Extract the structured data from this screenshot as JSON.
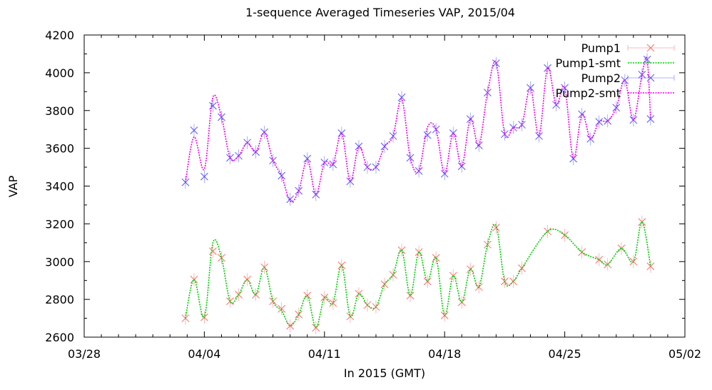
{
  "chart_data": {
    "type": "line",
    "title": "1-sequence Averaged Timeseries VAP, 2015/04",
    "xlabel": "In 2015 (GMT)",
    "ylabel": "VAP",
    "xlim": [
      "03/28",
      "05/02"
    ],
    "ylim": [
      2600,
      4200
    ],
    "xticks": [
      "03/28",
      "04/04",
      "04/11",
      "04/18",
      "04/25",
      "05/02"
    ],
    "yticks": [
      2600,
      2800,
      3000,
      3200,
      3400,
      3600,
      3800,
      4000,
      4200
    ],
    "grid": false,
    "legend_position": "top-right",
    "series": [
      {
        "name": "Pump1",
        "style": "points-errorbars",
        "marker": "x",
        "color": "#ff6b6b",
        "points": [
          [
            "04/02.9",
            2700
          ],
          [
            "04/03.4",
            2905
          ],
          [
            "04/04.0",
            2705
          ],
          [
            "04/04.5",
            3055
          ],
          [
            "04/05.0",
            3020
          ],
          [
            "04/05.5",
            2790
          ],
          [
            "04/06.0",
            2825
          ],
          [
            "04/06.5",
            2905
          ],
          [
            "04/07.0",
            2825
          ],
          [
            "04/07.5",
            2970
          ],
          [
            "04/08.0",
            2790
          ],
          [
            "04/08.5",
            2750
          ],
          [
            "04/09.0",
            2660
          ],
          [
            "04/09.5",
            2720
          ],
          [
            "04/10.0",
            2820
          ],
          [
            "04/10.5",
            2650
          ],
          [
            "04/11.0",
            2810
          ],
          [
            "04/11.5",
            2780
          ],
          [
            "04/12.0",
            2980
          ],
          [
            "04/12.5",
            2710
          ],
          [
            "04/13.0",
            2830
          ],
          [
            "04/13.5",
            2770
          ],
          [
            "04/14.0",
            2760
          ],
          [
            "04/14.5",
            2880
          ],
          [
            "04/15.0",
            2930
          ],
          [
            "04/15.5",
            3060
          ],
          [
            "04/16.0",
            2820
          ],
          [
            "04/16.5",
            3050
          ],
          [
            "04/17.0",
            2895
          ],
          [
            "04/17.5",
            3020
          ],
          [
            "04/18.0",
            2715
          ],
          [
            "04/18.5",
            2925
          ],
          [
            "04/19.0",
            2785
          ],
          [
            "04/19.5",
            2960
          ],
          [
            "04/20.0",
            2865
          ],
          [
            "04/20.5",
            3090
          ],
          [
            "04/21.0",
            3180
          ],
          [
            "04/21.5",
            2895
          ],
          [
            "04/22.0",
            2895
          ],
          [
            "04/22.5",
            2965
          ],
          [
            "04/24.0",
            3160
          ],
          [
            "04/25.0",
            3140
          ],
          [
            "04/26.0",
            3050
          ],
          [
            "04/27.0",
            3010
          ],
          [
            "04/27.5",
            2985
          ],
          [
            "04/28.3",
            3070
          ],
          [
            "04/29.0",
            3000
          ],
          [
            "04/29.5",
            3210
          ],
          [
            "04/30.0",
            2975
          ]
        ]
      },
      {
        "name": "Pump1-smt",
        "style": "smooth-line",
        "color": "#00cc00",
        "points": [
          [
            "04/02.9",
            2700
          ],
          [
            "04/03.4",
            2905
          ],
          [
            "04/04.0",
            2705
          ],
          [
            "04/04.5",
            3100
          ],
          [
            "04/05.0",
            3020
          ],
          [
            "04/05.5",
            2790
          ],
          [
            "04/06.0",
            2825
          ],
          [
            "04/06.5",
            2905
          ],
          [
            "04/07.0",
            2825
          ],
          [
            "04/07.5",
            2970
          ],
          [
            "04/08.0",
            2790
          ],
          [
            "04/08.5",
            2740
          ],
          [
            "04/09.0",
            2660
          ],
          [
            "04/09.5",
            2720
          ],
          [
            "04/10.0",
            2820
          ],
          [
            "04/10.5",
            2650
          ],
          [
            "04/11.0",
            2810
          ],
          [
            "04/11.5",
            2780
          ],
          [
            "04/12.0",
            2980
          ],
          [
            "04/12.5",
            2710
          ],
          [
            "04/13.0",
            2830
          ],
          [
            "04/13.5",
            2770
          ],
          [
            "04/14.0",
            2760
          ],
          [
            "04/14.5",
            2880
          ],
          [
            "04/15.0",
            2930
          ],
          [
            "04/15.5",
            3060
          ],
          [
            "04/16.0",
            2820
          ],
          [
            "04/16.5",
            3050
          ],
          [
            "04/17.0",
            2895
          ],
          [
            "04/17.5",
            3020
          ],
          [
            "04/18.0",
            2715
          ],
          [
            "04/18.5",
            2925
          ],
          [
            "04/19.0",
            2785
          ],
          [
            "04/19.5",
            2960
          ],
          [
            "04/20.0",
            2865
          ],
          [
            "04/20.5",
            3090
          ],
          [
            "04/21.0",
            3190
          ],
          [
            "04/21.5",
            2895
          ],
          [
            "04/22.0",
            2895
          ],
          [
            "04/22.5",
            2965
          ],
          [
            "04/24.0",
            3160
          ],
          [
            "04/25.0",
            3140
          ],
          [
            "04/26.0",
            3050
          ],
          [
            "04/27.0",
            3010
          ],
          [
            "04/27.5",
            2985
          ],
          [
            "04/28.3",
            3070
          ],
          [
            "04/29.0",
            3000
          ],
          [
            "04/29.5",
            3210
          ],
          [
            "04/30.0",
            2975
          ]
        ]
      },
      {
        "name": "Pump2",
        "style": "points-errorbars",
        "marker": "x",
        "color": "#5555ff",
        "points": [
          [
            "04/02.9",
            3420
          ],
          [
            "04/03.4",
            3695
          ],
          [
            "04/04.0",
            3450
          ],
          [
            "04/04.5",
            3825
          ],
          [
            "04/05.0",
            3765
          ],
          [
            "04/05.5",
            3550
          ],
          [
            "04/06.0",
            3560
          ],
          [
            "04/06.5",
            3630
          ],
          [
            "04/07.0",
            3580
          ],
          [
            "04/07.5",
            3685
          ],
          [
            "04/08.0",
            3535
          ],
          [
            "04/08.5",
            3455
          ],
          [
            "04/09.0",
            3330
          ],
          [
            "04/09.5",
            3375
          ],
          [
            "04/10.0",
            3545
          ],
          [
            "04/10.5",
            3355
          ],
          [
            "04/11.0",
            3525
          ],
          [
            "04/11.5",
            3515
          ],
          [
            "04/12.0",
            3680
          ],
          [
            "04/12.5",
            3425
          ],
          [
            "04/13.0",
            3610
          ],
          [
            "04/13.5",
            3500
          ],
          [
            "04/14.0",
            3500
          ],
          [
            "04/14.5",
            3610
          ],
          [
            "04/15.0",
            3665
          ],
          [
            "04/15.5",
            3870
          ],
          [
            "04/16.0",
            3550
          ],
          [
            "04/16.5",
            3480
          ],
          [
            "04/17.0",
            3670
          ],
          [
            "04/17.5",
            3700
          ],
          [
            "04/18.0",
            3465
          ],
          [
            "04/18.5",
            3680
          ],
          [
            "04/19.0",
            3505
          ],
          [
            "04/19.5",
            3755
          ],
          [
            "04/20.0",
            3615
          ],
          [
            "04/20.5",
            3895
          ],
          [
            "04/21.0",
            4050
          ],
          [
            "04/21.5",
            3675
          ],
          [
            "04/22.0",
            3710
          ],
          [
            "04/22.5",
            3725
          ],
          [
            "04/23.0",
            3920
          ],
          [
            "04/23.5",
            3665
          ],
          [
            "04/24.0",
            4025
          ],
          [
            "04/24.5",
            3830
          ],
          [
            "04/25.0",
            3920
          ],
          [
            "04/25.5",
            3545
          ],
          [
            "04/26.0",
            3780
          ],
          [
            "04/26.5",
            3650
          ],
          [
            "04/27.0",
            3740
          ],
          [
            "04/27.5",
            3745
          ],
          [
            "04/28.0",
            3815
          ],
          [
            "04/28.5",
            3960
          ],
          [
            "04/29.0",
            3750
          ],
          [
            "04/29.5",
            3990
          ],
          [
            "04/29.8",
            4070
          ],
          [
            "04/30.0",
            3755
          ]
        ]
      },
      {
        "name": "Pump2-smt",
        "style": "smooth-line",
        "color": "#ee00ee",
        "points": [
          [
            "04/02.9",
            3420
          ],
          [
            "04/03.4",
            3660
          ],
          [
            "04/04.0",
            3490
          ],
          [
            "04/04.5",
            3870
          ],
          [
            "04/05.0",
            3765
          ],
          [
            "04/05.5",
            3550
          ],
          [
            "04/06.0",
            3560
          ],
          [
            "04/06.5",
            3630
          ],
          [
            "04/07.0",
            3580
          ],
          [
            "04/07.5",
            3685
          ],
          [
            "04/08.0",
            3535
          ],
          [
            "04/08.5",
            3455
          ],
          [
            "04/09.0",
            3320
          ],
          [
            "04/09.5",
            3375
          ],
          [
            "04/10.0",
            3540
          ],
          [
            "04/10.5",
            3355
          ],
          [
            "04/11.0",
            3525
          ],
          [
            "04/11.5",
            3515
          ],
          [
            "04/12.0",
            3680
          ],
          [
            "04/12.5",
            3425
          ],
          [
            "04/13.0",
            3610
          ],
          [
            "04/13.5",
            3500
          ],
          [
            "04/14.0",
            3500
          ],
          [
            "04/14.5",
            3610
          ],
          [
            "04/15.0",
            3665
          ],
          [
            "04/15.5",
            3860
          ],
          [
            "04/16.0",
            3550
          ],
          [
            "04/16.5",
            3480
          ],
          [
            "04/17.0",
            3710
          ],
          [
            "04/17.5",
            3700
          ],
          [
            "04/18.0",
            3465
          ],
          [
            "04/18.5",
            3680
          ],
          [
            "04/19.0",
            3505
          ],
          [
            "04/19.5",
            3755
          ],
          [
            "04/20.0",
            3615
          ],
          [
            "04/20.5",
            3895
          ],
          [
            "04/21.0",
            4055
          ],
          [
            "04/21.5",
            3675
          ],
          [
            "04/22.0",
            3710
          ],
          [
            "04/22.5",
            3725
          ],
          [
            "04/23.0",
            3920
          ],
          [
            "04/23.5",
            3665
          ],
          [
            "04/24.0",
            4025
          ],
          [
            "04/24.5",
            3830
          ],
          [
            "04/25.0",
            3920
          ],
          [
            "04/25.5",
            3545
          ],
          [
            "04/26.0",
            3780
          ],
          [
            "04/26.5",
            3650
          ],
          [
            "04/27.0",
            3740
          ],
          [
            "04/27.5",
            3745
          ],
          [
            "04/28.0",
            3815
          ],
          [
            "04/28.5",
            3960
          ],
          [
            "04/29.0",
            3750
          ],
          [
            "04/29.5",
            3990
          ],
          [
            "04/29.8",
            4070
          ],
          [
            "04/30.0",
            3755
          ]
        ]
      }
    ]
  }
}
